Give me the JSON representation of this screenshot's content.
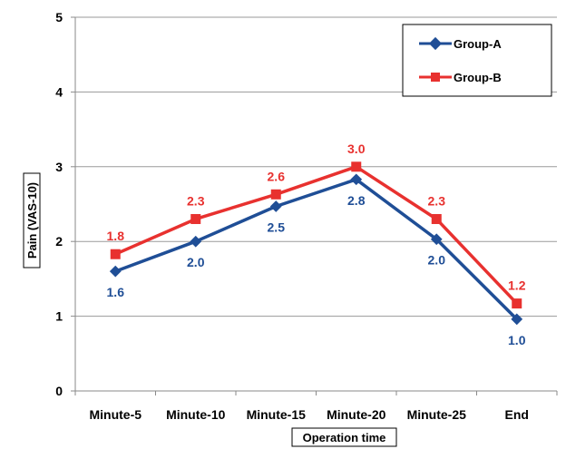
{
  "chart_data": {
    "type": "line",
    "title": "",
    "xlabel": "Operation time",
    "ylabel": "Pain (VAS-10)",
    "categories": [
      "Minute-5",
      "Minute-10",
      "Minute-15",
      "Minute-20",
      "Minute-25",
      "End"
    ],
    "y_ticks": [
      "0",
      "1",
      "2",
      "3",
      "4",
      "5"
    ],
    "ylim": [
      0,
      5
    ],
    "grid": true,
    "legend_position": "top-right",
    "series": [
      {
        "name": "Group-A",
        "color": "#1f4e96",
        "marker": "diamond",
        "values": [
          1.6,
          2.0,
          2.47,
          2.83,
          2.03,
          0.96
        ],
        "labels": [
          "1.6",
          "2.0",
          "2.5",
          "2.8",
          "2.0",
          "1.0"
        ]
      },
      {
        "name": "Group-B",
        "color": "#e8312f",
        "marker": "square",
        "values": [
          1.83,
          2.3,
          2.63,
          3.0,
          2.3,
          1.17
        ],
        "labels": [
          "1.8",
          "2.3",
          "2.6",
          "3.0",
          "2.3",
          "1.2"
        ]
      }
    ]
  }
}
